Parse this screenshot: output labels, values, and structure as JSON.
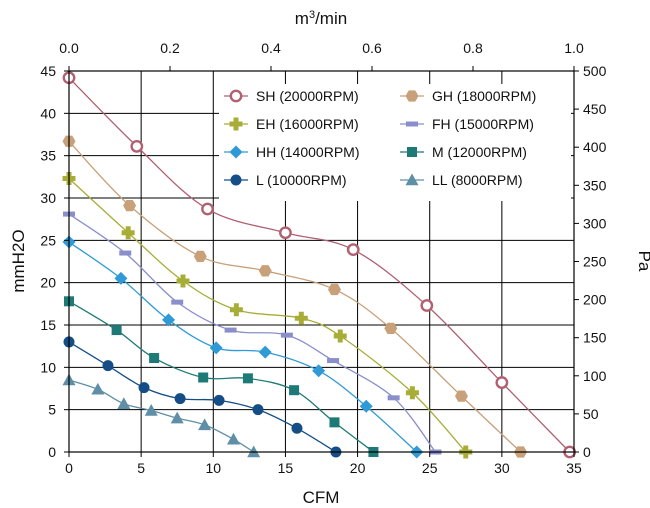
{
  "chart_data": {
    "type": "line",
    "title": "",
    "xlabel": "CFM",
    "ylabel": "mmH2O",
    "x2label": "m3/min",
    "y2label": "Pa",
    "xlim": [
      0,
      35
    ],
    "ylim": [
      0,
      45
    ],
    "x2lim": [
      0,
      1.0
    ],
    "y2lim": [
      0,
      500
    ],
    "x_ticks": [
      "0",
      "5",
      "10",
      "15",
      "20",
      "25",
      "30",
      "35"
    ],
    "y_ticks": [
      "0",
      "5",
      "10",
      "15",
      "20",
      "25",
      "30",
      "35",
      "40",
      "45"
    ],
    "x2_ticks": [
      "0.0",
      "0.2",
      "0.4",
      "0.6",
      "0.8",
      "1.0"
    ],
    "y2_ticks": [
      "0",
      "50",
      "100",
      "150",
      "200",
      "250",
      "300",
      "350",
      "400",
      "450",
      "500"
    ],
    "grid": true,
    "legend_position": "top-right",
    "series": [
      {
        "name": "SH (20000RPM)",
        "color": "#b06070",
        "marker": "open-circle",
        "points": [
          [
            0,
            44.2
          ],
          [
            4.7,
            36.1
          ],
          [
            9.6,
            28.7
          ],
          [
            15,
            25.9
          ],
          [
            19.7,
            23.9
          ],
          [
            24.8,
            17.3
          ],
          [
            30,
            8.2
          ],
          [
            34.7,
            0
          ]
        ]
      },
      {
        "name": "GH (18000RPM)",
        "color": "#c8a079",
        "marker": "hexagon",
        "points": [
          [
            0,
            36.7
          ],
          [
            4.2,
            29.1
          ],
          [
            9.1,
            23.1
          ],
          [
            13.6,
            21.4
          ],
          [
            18.4,
            19.2
          ],
          [
            22.3,
            14.6
          ],
          [
            27.2,
            6.6
          ],
          [
            31.3,
            0
          ]
        ]
      },
      {
        "name": "EH (16000RPM)",
        "color": "#a8ad38",
        "marker": "plus",
        "points": [
          [
            0,
            32.3
          ],
          [
            4.1,
            25.9
          ],
          [
            7.9,
            20.2
          ],
          [
            11.6,
            16.8
          ],
          [
            16.1,
            15.8
          ],
          [
            18.8,
            13.7
          ],
          [
            23.8,
            7
          ],
          [
            27.5,
            0
          ]
        ]
      },
      {
        "name": "FH (15000RPM)",
        "color": "#8a8fcc",
        "marker": "dash",
        "points": [
          [
            0,
            28.1
          ],
          [
            3.9,
            23.5
          ],
          [
            7.5,
            17.7
          ],
          [
            11.2,
            14.4
          ],
          [
            15.1,
            13.8
          ],
          [
            18.3,
            10.8
          ],
          [
            22.5,
            6.4
          ],
          [
            25.4,
            0
          ]
        ]
      },
      {
        "name": "HH (14000RPM)",
        "color": "#2f9ad6",
        "marker": "diamond",
        "points": [
          [
            0,
            24.8
          ],
          [
            3.6,
            20.5
          ],
          [
            6.9,
            15.6
          ],
          [
            10.2,
            12.3
          ],
          [
            13.6,
            11.8
          ],
          [
            17.3,
            9.6
          ],
          [
            20.6,
            5.4
          ],
          [
            24.1,
            0
          ]
        ]
      },
      {
        "name": "M (12000RPM)",
        "color": "#1d7a76",
        "marker": "square",
        "points": [
          [
            0,
            17.8
          ],
          [
            3.3,
            14.4
          ],
          [
            5.9,
            11.1
          ],
          [
            9.3,
            8.8
          ],
          [
            12.4,
            8.7
          ],
          [
            15.6,
            7.3
          ],
          [
            18.4,
            3.5
          ],
          [
            21.1,
            0
          ]
        ]
      },
      {
        "name": "L (10000RPM)",
        "color": "#154e86",
        "marker": "filled-circle",
        "points": [
          [
            0,
            13
          ],
          [
            2.7,
            10.2
          ],
          [
            5.2,
            7.6
          ],
          [
            7.7,
            6.3
          ],
          [
            10.4,
            6.1
          ],
          [
            13.1,
            5
          ],
          [
            15.8,
            2.8
          ],
          [
            18.5,
            0
          ]
        ]
      },
      {
        "name": "LL (8000RPM)",
        "color": "#5f8fa6",
        "marker": "triangle",
        "points": [
          [
            0,
            8.5
          ],
          [
            2,
            7.4
          ],
          [
            3.8,
            5.7
          ],
          [
            5.7,
            4.9
          ],
          [
            7.5,
            4
          ],
          [
            9.4,
            3.2
          ],
          [
            11.4,
            1.5
          ],
          [
            12.8,
            0
          ]
        ]
      }
    ]
  }
}
